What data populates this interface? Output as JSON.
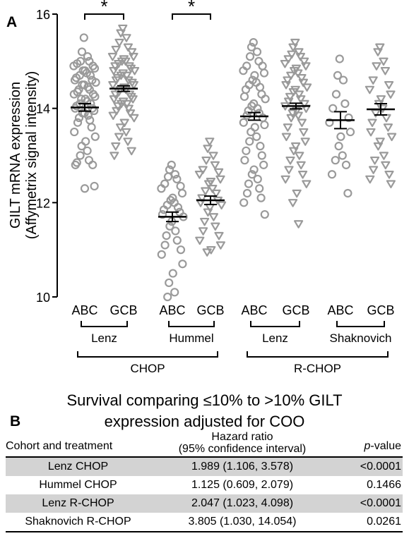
{
  "panel_a_label": "A",
  "panel_b_label": "B",
  "chart_data": {
    "type": "scatter",
    "ylabel_line1": "GILT mRNA expression",
    "ylabel_line2": "(Affymetrix signal intensity)",
    "ylim": [
      10,
      16
    ],
    "yticks": [
      "10",
      "12",
      "14",
      "16"
    ],
    "groups": [
      {
        "label": "ABC",
        "marker": "circle",
        "mean": 14.02,
        "sem": 0.08,
        "values": [
          15.5,
          15.2,
          15.1,
          15.0,
          15.0,
          14.95,
          14.9,
          14.9,
          14.85,
          14.8,
          14.8,
          14.75,
          14.7,
          14.7,
          14.65,
          14.6,
          14.6,
          14.55,
          14.5,
          14.5,
          14.45,
          14.4,
          14.4,
          14.35,
          14.3,
          14.3,
          14.25,
          14.2,
          14.2,
          14.15,
          14.1,
          14.1,
          14.05,
          14.0,
          14.0,
          13.95,
          13.9,
          13.9,
          13.85,
          13.8,
          13.75,
          13.7,
          13.6,
          13.5,
          13.4,
          13.3,
          13.2,
          13.1,
          13.0,
          12.9,
          12.85,
          12.8,
          12.8,
          12.35,
          12.3
        ]
      },
      {
        "label": "GCB",
        "marker": "triangle",
        "mean": 14.42,
        "sem": 0.06,
        "values": [
          15.7,
          15.6,
          15.5,
          15.4,
          15.3,
          15.25,
          15.2,
          15.1,
          15.1,
          15.05,
          15.0,
          15.0,
          14.95,
          14.9,
          14.9,
          14.85,
          14.8,
          14.8,
          14.75,
          14.7,
          14.7,
          14.65,
          14.6,
          14.6,
          14.55,
          14.5,
          14.5,
          14.45,
          14.4,
          14.4,
          14.35,
          14.3,
          14.3,
          14.25,
          14.2,
          14.2,
          14.15,
          14.1,
          14.1,
          14.05,
          14.0,
          13.95,
          13.9,
          13.85,
          13.8,
          13.7,
          13.6,
          13.5,
          13.4,
          13.3,
          13.2,
          13.1,
          13.0
        ]
      },
      {
        "label": "ABC",
        "marker": "circle",
        "mean": 11.7,
        "sem": 0.1,
        "values": [
          12.8,
          12.7,
          12.6,
          12.55,
          12.5,
          12.4,
          12.35,
          12.3,
          12.2,
          12.1,
          12.05,
          12.0,
          11.95,
          11.9,
          11.85,
          11.8,
          11.75,
          11.7,
          11.6,
          11.5,
          11.4,
          11.3,
          11.2,
          11.1,
          11.0,
          10.9,
          10.7,
          10.5,
          10.3,
          10.1,
          10.0
        ]
      },
      {
        "label": "GCB",
        "marker": "triangle",
        "mean": 12.05,
        "sem": 0.09,
        "values": [
          13.3,
          13.15,
          13.0,
          12.9,
          12.8,
          12.7,
          12.65,
          12.6,
          12.5,
          12.45,
          12.4,
          12.3,
          12.25,
          12.2,
          12.1,
          12.05,
          12.0,
          11.95,
          11.9,
          11.8,
          11.7,
          11.6,
          11.5,
          11.4,
          11.3,
          11.2,
          11.1,
          11.0,
          10.95
        ]
      },
      {
        "label": "ABC",
        "marker": "circle",
        "mean": 13.83,
        "sem": 0.08,
        "values": [
          15.4,
          15.3,
          15.2,
          15.1,
          15.0,
          14.9,
          14.9,
          14.8,
          14.75,
          14.7,
          14.6,
          14.55,
          14.5,
          14.45,
          14.4,
          14.3,
          14.25,
          14.2,
          14.1,
          14.05,
          14.0,
          13.95,
          13.9,
          13.85,
          13.8,
          13.7,
          13.65,
          13.6,
          13.5,
          13.4,
          13.3,
          13.2,
          13.1,
          13.0,
          12.9,
          12.8,
          12.7,
          12.6,
          12.5,
          12.4,
          12.3,
          12.2,
          12.1,
          12.0,
          11.75
        ]
      },
      {
        "label": "GCB",
        "marker": "triangle",
        "mean": 14.05,
        "sem": 0.06,
        "values": [
          15.4,
          15.3,
          15.2,
          15.15,
          15.1,
          15.05,
          15.0,
          14.95,
          14.9,
          14.85,
          14.8,
          14.75,
          14.7,
          14.65,
          14.6,
          14.55,
          14.5,
          14.45,
          14.4,
          14.35,
          14.3,
          14.25,
          14.2,
          14.15,
          14.1,
          14.05,
          14.0,
          13.95,
          13.9,
          13.85,
          13.8,
          13.7,
          13.6,
          13.5,
          13.4,
          13.3,
          13.2,
          13.1,
          13.0,
          12.9,
          12.8,
          12.7,
          12.6,
          12.5,
          12.4,
          12.2,
          12.0,
          11.55
        ]
      },
      {
        "label": "ABC",
        "marker": "circle",
        "mean": 13.75,
        "sem": 0.18,
        "values": [
          15.05,
          14.7,
          14.6,
          14.3,
          14.1,
          14.0,
          13.8,
          13.7,
          13.5,
          13.4,
          13.2,
          13.0,
          12.9,
          12.8,
          12.6,
          12.2
        ]
      },
      {
        "label": "GCB",
        "marker": "triangle",
        "mean": 13.98,
        "sem": 0.12,
        "values": [
          15.3,
          15.2,
          15.0,
          14.9,
          14.8,
          14.6,
          14.5,
          14.4,
          14.3,
          14.2,
          14.1,
          14.0,
          13.9,
          13.8,
          13.7,
          13.6,
          13.5,
          13.4,
          13.3,
          13.2,
          13.0,
          12.9,
          12.8,
          12.7,
          12.6,
          12.5,
          12.4
        ]
      }
    ],
    "significance": [
      {
        "from_group": 0,
        "to_group": 1,
        "label": "*"
      },
      {
        "from_group": 2,
        "to_group": 3,
        "label": "*"
      }
    ],
    "cohorts": [
      {
        "label": "Lenz",
        "groups": [
          0,
          1
        ]
      },
      {
        "label": "Hummel",
        "groups": [
          2,
          3
        ]
      },
      {
        "label": "Lenz",
        "groups": [
          4,
          5
        ]
      },
      {
        "label": "Shaknovich",
        "groups": [
          6,
          7
        ]
      }
    ],
    "treatments": [
      {
        "label": "CHOP",
        "groups": [
          0,
          3
        ]
      },
      {
        "label": "R-CHOP",
        "groups": [
          4,
          7
        ]
      }
    ],
    "colors": {
      "marker": "#9a9a9a",
      "line": "#000000"
    }
  },
  "table": {
    "title_line1": "Survival comparing ≤10% to >10% GILT",
    "title_line2": "expression adjusted for COO",
    "header": {
      "cohort": "Cohort and treatment",
      "hr_line1": "Hazard ratio",
      "hr_line2": "(95% confidence interval)",
      "p_italic": "p",
      "p_rest": "-value"
    },
    "rows": [
      {
        "cohort": "Lenz CHOP",
        "hr": "1.989 (1.106, 3.578)",
        "p": "<0.0001",
        "shaded": true
      },
      {
        "cohort": "Hummel CHOP",
        "hr": "1.125 (0.609, 2.079)",
        "p": "0.1466",
        "shaded": false
      },
      {
        "cohort": "Lenz R-CHOP",
        "hr": "2.047 (1.023, 4.098)",
        "p": "<0.0001",
        "shaded": true
      },
      {
        "cohort": "Shaknovich R-CHOP",
        "hr": "3.805 (1.030, 14.054)",
        "p": "0.0261",
        "shaded": false
      }
    ],
    "shade_color": "#d3d3d3"
  }
}
